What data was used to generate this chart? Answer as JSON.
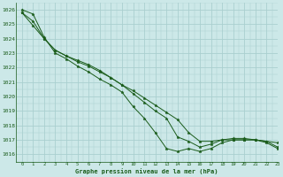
{
  "title": "Graphe pression niveau de la mer (hPa)",
  "bg_color": "#cce8e8",
  "grid_color": "#aacfcf",
  "line_color": "#1a5c1a",
  "xlim": [
    -0.5,
    23
  ],
  "ylim": [
    1015.5,
    1026.5
  ],
  "yticks": [
    1016,
    1017,
    1018,
    1019,
    1020,
    1021,
    1022,
    1023,
    1024,
    1025,
    1026
  ],
  "xticks": [
    0,
    1,
    2,
    3,
    4,
    5,
    6,
    7,
    8,
    9,
    10,
    11,
    12,
    13,
    14,
    15,
    16,
    17,
    18,
    19,
    20,
    21,
    22,
    23
  ],
  "series": [
    [
      1026.0,
      1025.7,
      1024.1,
      1023.0,
      1022.6,
      1022.1,
      1021.7,
      1021.2,
      1020.8,
      1020.3,
      1019.3,
      1018.5,
      1017.5,
      1016.4,
      1016.2,
      1016.4,
      1016.2,
      1016.4,
      1016.8,
      1017.0,
      1017.0,
      1017.0,
      1016.8,
      1016.4
    ],
    [
      1025.8,
      1025.2,
      1024.0,
      1023.2,
      1022.8,
      1022.4,
      1022.1,
      1021.7,
      1021.3,
      1020.8,
      1020.2,
      1019.6,
      1019.0,
      1018.5,
      1017.2,
      1016.9,
      1016.5,
      1016.7,
      1017.0,
      1017.0,
      1017.0,
      1017.0,
      1016.9,
      1016.8
    ],
    [
      1025.8,
      1024.9,
      1024.0,
      1023.2,
      1022.8,
      1022.5,
      1022.2,
      1021.8,
      1021.3,
      1020.8,
      1020.4,
      1019.9,
      1019.4,
      1018.9,
      1018.4,
      1017.5,
      1016.9,
      1016.9,
      1017.0,
      1017.1,
      1017.1,
      1017.0,
      1016.9,
      1016.5
    ]
  ]
}
